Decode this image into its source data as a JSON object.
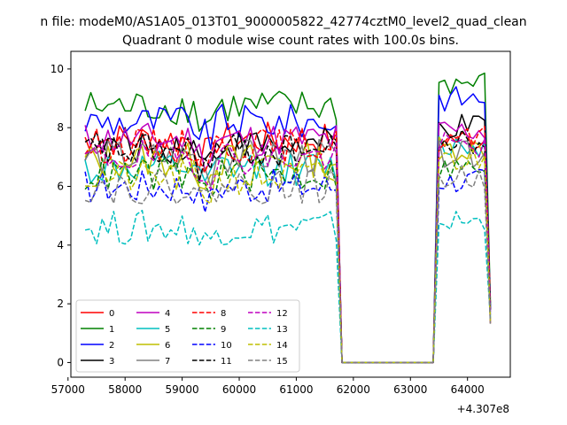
{
  "header": {
    "suptitle": "n file: modeM0/AS1A05_013T01_9000005822_42774cztM0_level2_quad_clean",
    "title": "Quadrant 0 module wise count rates with 100.0s bins.",
    "offset_text": "+4.307e8"
  },
  "chart_data": {
    "type": "line",
    "xlim": [
      57050,
      64750
    ],
    "ylim": [
      -0.5,
      10.6
    ],
    "xticks": [
      57000,
      58000,
      59000,
      60000,
      61000,
      62000,
      63000,
      64000
    ],
    "xtick_labels": [
      "57000",
      "58000",
      "59000",
      "60000",
      "61000",
      "62000",
      "63000",
      "64000"
    ],
    "yticks": [
      0,
      2,
      4,
      6,
      8,
      10
    ],
    "ytick_labels": [
      "0",
      "2",
      "4",
      "6",
      "8",
      "10"
    ],
    "x_offset": "+4.307e8",
    "grid": false,
    "legend_position": "lower-left",
    "legend_columns": 4,
    "segments": [
      {
        "x_start": 57300,
        "x_end": 61700,
        "step": 100
      },
      {
        "x_start": 63500,
        "x_end": 64400,
        "step": 100
      }
    ],
    "series": [
      {
        "name": "0",
        "color": "#ff0000",
        "dash": "solid",
        "level1": 7.6,
        "level2": 7.6
      },
      {
        "name": "1",
        "color": "#008000",
        "dash": "solid",
        "level1": 8.7,
        "level2": 9.5
      },
      {
        "name": "2",
        "color": "#0000ff",
        "dash": "solid",
        "level1": 8.2,
        "level2": 9.0
      },
      {
        "name": "3",
        "color": "#000000",
        "dash": "solid",
        "level1": 7.4,
        "level2": 8.0
      },
      {
        "name": "4",
        "color": "#bf00bf",
        "dash": "solid",
        "level1": 7.6,
        "level2": 7.9
      },
      {
        "name": "5",
        "color": "#00bfbf",
        "dash": "solid",
        "level1": 6.6,
        "level2": 7.4
      },
      {
        "name": "6",
        "color": "#bfbf00",
        "dash": "solid",
        "level1": 6.9,
        "level2": 7.3
      },
      {
        "name": "7",
        "color": "#808080",
        "dash": "solid",
        "level1": 7.0,
        "level2": 7.1
      },
      {
        "name": "8",
        "color": "#ff0000",
        "dash": "dashed",
        "level1": 7.4,
        "level2": 7.6
      },
      {
        "name": "9",
        "color": "#008000",
        "dash": "dashed",
        "level1": 6.4,
        "level2": 6.6
      },
      {
        "name": "10",
        "color": "#0000ff",
        "dash": "dashed",
        "level1": 6.0,
        "level2": 6.2
      },
      {
        "name": "11",
        "color": "#000000",
        "dash": "dashed",
        "level1": 7.2,
        "level2": 7.5
      },
      {
        "name": "12",
        "color": "#bf00bf",
        "dash": "dashed",
        "level1": 7.0,
        "level2": 7.4
      },
      {
        "name": "13",
        "color": "#00bfbf",
        "dash": "dashed",
        "level1": 4.6,
        "level2": 4.8
      },
      {
        "name": "14",
        "color": "#bfbf00",
        "dash": "dashed",
        "level1": 6.3,
        "level2": 6.9
      },
      {
        "name": "15",
        "color": "#808080",
        "dash": "dashed",
        "level1": 6.0,
        "level2": 6.3
      }
    ]
  }
}
